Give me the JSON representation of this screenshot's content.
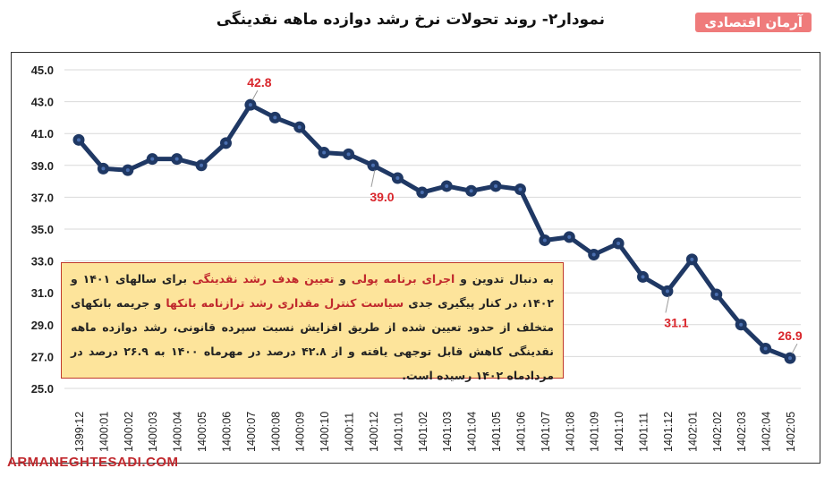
{
  "header": {
    "title": "نمودار۲- روند تحولات نرخ رشد دوازده ماهه نقدینگی",
    "logo": "آرمان اقتصادی"
  },
  "watermark": "ARMANEGHTESADI.COM",
  "note": {
    "parts": [
      {
        "t": "به دنبال تدوین و ",
        "hl": false
      },
      {
        "t": "اجرای برنامه پولی",
        "hl": true
      },
      {
        "t": " و ",
        "hl": false
      },
      {
        "t": "تعیین هدف رشد نقدینگی",
        "hl": true
      },
      {
        "t": " برای سالهای ۱۴۰۱ و ۱۴۰۲، در کنار پیگیری جدی ",
        "hl": false
      },
      {
        "t": "سیاست کنترل مقداری رشد ترازنامه بانکها",
        "hl": true
      },
      {
        "t": " و جریمه بانکهای متخلف از حدود تعیین شده از طریق افزایش نسبت سپرده قانونی، رشد دوازده ماهه نقدینگی کاهش قابل توجهی یافته و از ۴۲.۸ درصد در مهرماه ۱۴۰۰ به ۲۶.۹ درصد در مردادماه ۱۴۰۲ رسیده است.",
        "hl": false
      }
    ]
  },
  "colors": {
    "line": "#1f3864",
    "label": "#d9262c",
    "grid": "#d9d9d9",
    "accent": "#ef7b7b"
  },
  "chart_data": {
    "type": "line",
    "title": "نمودار۲- روند تحولات نرخ رشد دوازده ماهه نقدینگی",
    "xlabel": "",
    "ylabel": "",
    "ylim": [
      25,
      45
    ],
    "yticks": [
      "25.0",
      "27.0",
      "29.0",
      "31.0",
      "33.0",
      "35.0",
      "37.0",
      "39.0",
      "41.0",
      "43.0",
      "45.0"
    ],
    "grid": true,
    "categories": [
      "1399:12",
      "1400:01",
      "1400:02",
      "1400:03",
      "1400:04",
      "1400:05",
      "1400:06",
      "1400:07",
      "1400:08",
      "1400:09",
      "1400:10",
      "1400:11",
      "1400:12",
      "1401:01",
      "1401:02",
      "1401:03",
      "1401:04",
      "1401:05",
      "1401:06",
      "1401:07",
      "1401:08",
      "1401:09",
      "1401:10",
      "1401:11",
      "1401:12",
      "1402:01",
      "1402:02",
      "1402:03",
      "1402:04",
      "1402:05"
    ],
    "values": [
      40.6,
      38.8,
      38.7,
      39.4,
      39.4,
      39.0,
      40.4,
      42.8,
      42.0,
      41.4,
      39.8,
      39.7,
      39.0,
      38.2,
      37.3,
      37.7,
      37.4,
      37.7,
      37.5,
      34.3,
      34.5,
      33.4,
      34.1,
      32.0,
      31.1,
      33.1,
      30.9,
      29.0,
      27.5,
      26.9
    ],
    "data_labels": [
      {
        "category": "1400:07",
        "text": "42.8",
        "pos": "above"
      },
      {
        "category": "1400:12",
        "text": "39.0",
        "pos": "below"
      },
      {
        "category": "1401:12",
        "text": "31.1",
        "pos": "below"
      },
      {
        "category": "1402:05",
        "text": "26.9",
        "pos": "above"
      }
    ]
  }
}
